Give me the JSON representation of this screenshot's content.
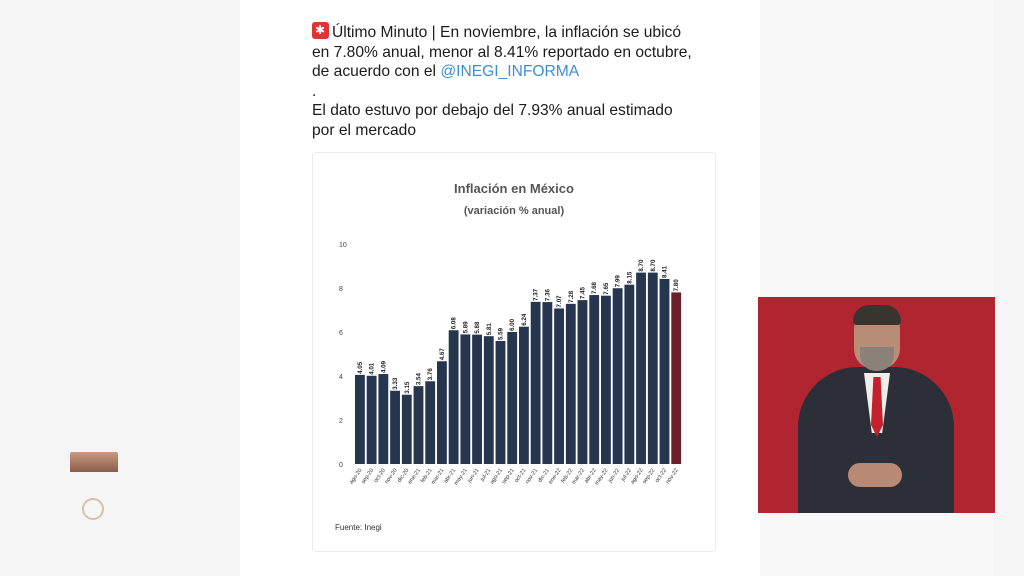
{
  "tweet": {
    "line1": "Último Minuto | En noviembre, la inflación se ubicó",
    "line2": "en 7.80% anual, menor al 8.41% reportado en octubre,",
    "line3_prefix": "de acuerdo con el ",
    "mention": "@INEGI_INFORMA",
    "dot": ".",
    "line4": "El dato estuvo por debajo del 7.93% anual estimado",
    "line5": "por el mercado"
  },
  "chart_data": {
    "type": "bar",
    "title": "Inflación en México",
    "subtitle": "(variación % anual)",
    "source": "Fuente: Inegi",
    "ylim": [
      0,
      10
    ],
    "yticks": [
      0,
      2,
      4,
      6,
      8,
      10
    ],
    "grid": false,
    "categories": [
      "ago-20",
      "sep-20",
      "oct-20",
      "nov-20",
      "dic-20",
      "ene-21",
      "feb-21",
      "mar-21",
      "abr-21",
      "may-21",
      "jun-21",
      "jul-21",
      "ago-21",
      "sep-21",
      "oct-21",
      "nov-21",
      "dic-21",
      "ene-22",
      "feb-22",
      "mar-22",
      "abr-22",
      "may-22",
      "jun-22",
      "jul-22",
      "ago-22",
      "sep-22",
      "oct-22",
      "nov-22"
    ],
    "values": [
      4.05,
      4.01,
      4.09,
      3.33,
      3.15,
      3.54,
      3.76,
      4.67,
      6.08,
      5.89,
      5.88,
      5.81,
      5.59,
      6.0,
      6.24,
      7.37,
      7.36,
      7.07,
      7.28,
      7.45,
      7.68,
      7.65,
      7.99,
      8.15,
      8.7,
      8.7,
      8.41,
      7.8
    ],
    "colors": {
      "bar": "#26364f",
      "highlight": "#6b1f2a"
    }
  },
  "interpreter": {
    "background": "#b0252f"
  }
}
